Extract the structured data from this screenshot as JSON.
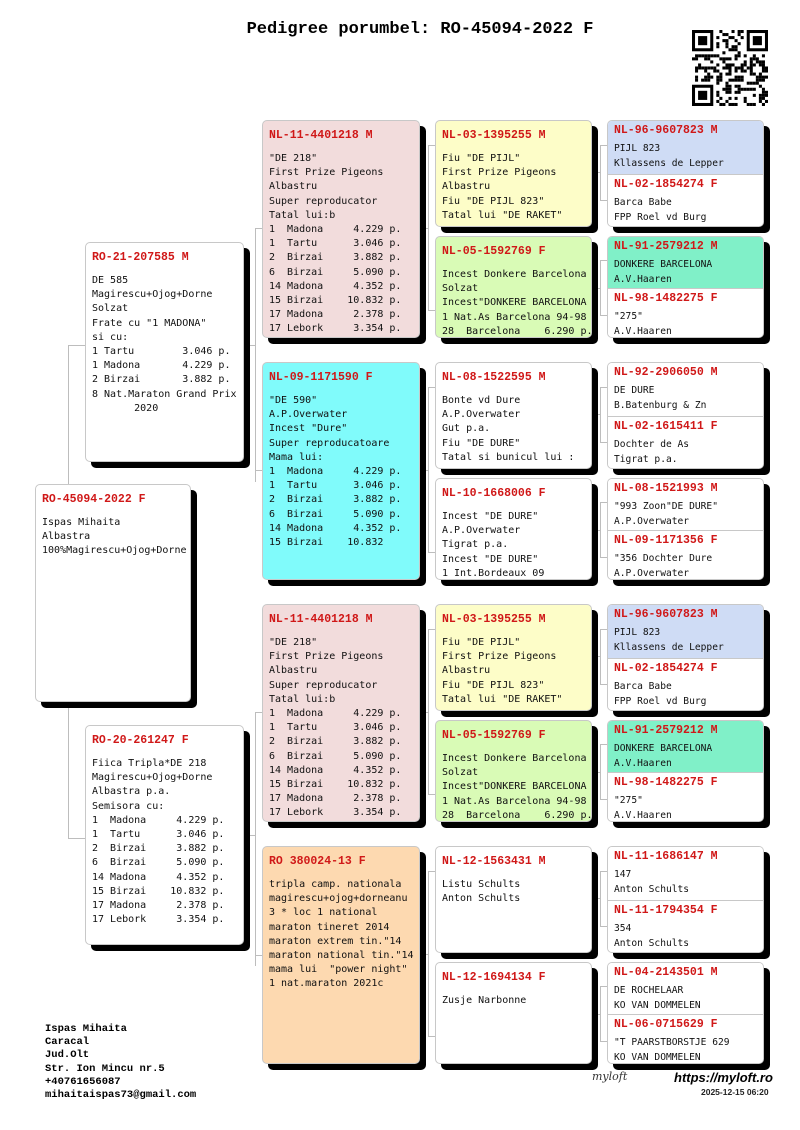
{
  "title": "Pedigree porumbel: RO-45094-2022 F",
  "colors": {
    "ring": "#d01818",
    "pink": "#f2dcdc",
    "yellow": "#fdfdc8",
    "green": "#d9fbb6",
    "cyan": "#80fbfb",
    "blue": "#cfdcf5",
    "teal": "#80f0c8",
    "orange": "#fdd9b0",
    "white": "#ffffff"
  },
  "subject": {
    "ring": "RO-45094-2022 F",
    "lines": [
      "Ispas Mihaita",
      "Albastra",
      "100%Magirescu+Ojog+Dorne"
    ]
  },
  "sire": {
    "ring": "RO-21-207585 M",
    "lines": [
      "DE 585",
      "Magirescu+Ojog+Dorne",
      "Solzat",
      "Frate cu \"1 MADONA\"",
      "si cu:",
      "1 Tartu        3.046 p.",
      "1 Madona       4.229 p.",
      "2 Birzai       3.882 p.",
      "8 Nat.Maraton Grand Prix",
      "       2020"
    ]
  },
  "dam": {
    "ring": "RO-20-261247 F",
    "lines": [
      "Fiica Tripla*DE 218",
      "Magirescu+Ojog+Dorne",
      "Albastra p.a.",
      "Semisora cu:",
      "1  Madona     4.229 p.",
      "1  Tartu      3.046 p.",
      "2  Birzai     3.882 p.",
      "6  Birzai     5.090 p.",
      "14 Madona     4.352 p.",
      "15 Birzai    10.832 p.",
      "17 Madona     2.378 p.",
      "17 Lebork     3.354 p."
    ]
  },
  "gen3": [
    {
      "ring": "NL-11-4401218 M",
      "color": "pink",
      "lines": [
        "\"DE 218\"",
        "First Prize Pigeons",
        "Albastru",
        "Super reproducator",
        "Tatal lui:b",
        "1  Madona     4.229 p.",
        "1  Tartu      3.046 p.",
        "2  Birzai     3.882 p.",
        "6  Birzai     5.090 p.",
        "14 Madona     4.352 p.",
        "15 Birzai    10.832 p.",
        "17 Madona     2.378 p.",
        "17 Lebork     3.354 p."
      ]
    },
    {
      "ring": "NL-09-1171590 F",
      "color": "cyan",
      "lines": [
        "\"DE 590\"",
        "A.P.Overwater",
        "Incest \"Dure\"",
        "Super reproducatoare",
        "Mama lui:",
        "1  Madona     4.229 p.",
        "1  Tartu      3.046 p.",
        "2  Birzai     3.882 p.",
        "6  Birzai     5.090 p.",
        "14 Madona     4.352 p.",
        "15 Birzai    10.832"
      ]
    },
    {
      "ring": "NL-11-4401218 M",
      "color": "pink",
      "lines": [
        "\"DE 218\"",
        "First Prize Pigeons",
        "Albastru",
        "Super reproducator",
        "Tatal lui:b",
        "1  Madona     4.229 p.",
        "1  Tartu      3.046 p.",
        "2  Birzai     3.882 p.",
        "6  Birzai     5.090 p.",
        "14 Madona     4.352 p.",
        "15 Birzai    10.832 p.",
        "17 Madona     2.378 p.",
        "17 Lebork     3.354 p."
      ]
    },
    {
      "ring": "RO 380024-13 F",
      "color": "orange",
      "lines": [
        "tripla camp. nationala",
        "magirescu+ojog+dorneanu",
        "3 * loc 1 national",
        "maraton tineret 2014",
        "maraton extrem tin.\"14",
        "maraton national tin.\"14",
        "mama lui  \"power night\"",
        "1 nat.maraton 2021c"
      ]
    }
  ],
  "gen4": [
    {
      "ring": "NL-03-1395255 M",
      "color": "yellow",
      "lines": [
        "Fiu \"DE PIJL\"",
        "First Prize Pigeons",
        "Albastru",
        "Fiu \"DE PIJL 823\"",
        "Tatal lui \"DE RAKET\""
      ]
    },
    {
      "ring": "NL-05-1592769 F",
      "color": "green",
      "lines": [
        "Incest Donkere Barcelona",
        "Solzat",
        "Incest\"DONKERE BARCELONA",
        "1 Nat.As Barcelona 94-98",
        "28  Barcelona    6.290 p."
      ]
    },
    {
      "ring": "NL-08-1522595 M",
      "color": "white",
      "lines": [
        "Bonte vd Dure",
        "A.P.Overwater",
        "Gut p.a.",
        "Fiu \"DE DURE\"",
        "Tatal si bunicul lui :"
      ]
    },
    {
      "ring": "NL-10-1668006 F",
      "color": "white",
      "lines": [
        "Incest \"DE DURE\"",
        "A.P.Overwater",
        "Tigrat p.a.",
        "Incest \"DE DURE\"",
        "1 Int.Bordeaux 09"
      ]
    },
    {
      "ring": "NL-03-1395255 M",
      "color": "yellow",
      "lines": [
        "Fiu \"DE PIJL\"",
        "First Prize Pigeons",
        "Albastru",
        "Fiu \"DE PIJL 823\"",
        "Tatal lui \"DE RAKET\""
      ]
    },
    {
      "ring": "NL-05-1592769 F",
      "color": "green",
      "lines": [
        "Incest Donkere Barcelona",
        "Solzat",
        "Incest\"DONKERE BARCELONA",
        "1 Nat.As Barcelona 94-98",
        "28  Barcelona    6.290 p."
      ]
    },
    {
      "ring": "NL-12-1563431 M",
      "color": "white",
      "lines": [
        "Listu Schults",
        "Anton Schults"
      ]
    },
    {
      "ring": "NL-12-1694134 F",
      "color": "white",
      "lines": [
        "Zusje Narbonne"
      ]
    }
  ],
  "gen5": [
    {
      "ring": "NL-96-9607823 M",
      "color": "blue",
      "lines": [
        "PIJL 823",
        "Kllassens de Lepper"
      ]
    },
    {
      "ring": "NL-02-1854274 F",
      "color": "white",
      "lines": [
        "Barca Babe",
        "FPP Roel vd Burg"
      ]
    },
    {
      "ring": "NL-91-2579212 M",
      "color": "teal",
      "lines": [
        "DONKERE BARCELONA",
        "A.V.Haaren"
      ]
    },
    {
      "ring": "NL-98-1482275 F",
      "color": "white",
      "lines": [
        "\"275\"",
        "A.V.Haaren"
      ]
    },
    {
      "ring": "NL-92-2906050 M",
      "color": "white",
      "lines": [
        "DE DURE",
        "B.Batenburg & Zn"
      ]
    },
    {
      "ring": "NL-02-1615411 F",
      "color": "white",
      "lines": [
        "Dochter de As",
        "Tigrat p.a."
      ]
    },
    {
      "ring": "NL-08-1521993 M",
      "color": "white",
      "lines": [
        "\"993 Zoon\"DE DURE\"",
        "A.P.Overwater"
      ]
    },
    {
      "ring": "NL-09-1171356 F",
      "color": "white",
      "lines": [
        "\"356 Dochter Dure",
        "A.P.Overwater"
      ]
    },
    {
      "ring": "NL-96-9607823 M",
      "color": "blue",
      "lines": [
        "PIJL 823",
        "Kllassens de Lepper"
      ]
    },
    {
      "ring": "NL-02-1854274 F",
      "color": "white",
      "lines": [
        "Barca Babe",
        "FPP Roel vd Burg"
      ]
    },
    {
      "ring": "NL-91-2579212 M",
      "color": "teal",
      "lines": [
        "DONKERE BARCELONA",
        "A.V.Haaren"
      ]
    },
    {
      "ring": "NL-98-1482275 F",
      "color": "white",
      "lines": [
        "\"275\"",
        "A.V.Haaren"
      ]
    },
    {
      "ring": "NL-11-1686147 M",
      "color": "white",
      "lines": [
        "147",
        "Anton Schults"
      ]
    },
    {
      "ring": "NL-11-1794354 F",
      "color": "white",
      "lines": [
        "354",
        "Anton Schults"
      ]
    },
    {
      "ring": "NL-04-2143501 M",
      "color": "white",
      "lines": [
        "DE ROCHELAAR",
        "KO VAN DOMMELEN"
      ]
    },
    {
      "ring": "NL-06-0715629 F",
      "color": "white",
      "lines": [
        "\"T PAARSTBORSTJE 629",
        "KO VAN DOMMELEN"
      ]
    }
  ],
  "owner": {
    "lines": [
      "Ispas Mihaita",
      "Caracal",
      "Jud.Olt",
      "Str. Ion Mincu nr.5",
      "+40761656087",
      "mihaitaispas73@gmail.com"
    ]
  },
  "footer": {
    "logo": "myloft",
    "site": "https://myloft.ro",
    "timestamp": "2025-12-15 06:20"
  },
  "qr_icon": "qr-code"
}
